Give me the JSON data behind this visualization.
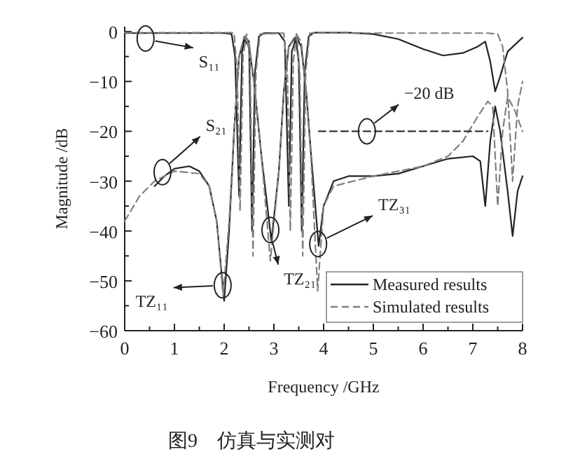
{
  "chart_data": {
    "type": "line",
    "xlabel": "Frequency /GHz",
    "ylabel": "Magnitude /dB",
    "xlim": [
      0,
      8
    ],
    "ylim": [
      -60,
      1
    ],
    "xticks": [
      0,
      1,
      2,
      3,
      4,
      5,
      6,
      7,
      8
    ],
    "yticks": [
      0,
      -10,
      -20,
      -30,
      -40,
      -50,
      -60
    ],
    "legend": "bottom right",
    "series": [
      {
        "name": "Measured results",
        "color": "#222222",
        "line_style": "solid",
        "x": [
          0,
          1,
          2,
          2.15,
          2.22,
          2.3,
          2.36,
          2.42,
          2.5,
          2.56,
          2.62,
          2.7,
          2.8,
          3.1,
          3.22,
          3.3,
          3.36,
          3.44,
          3.5,
          3.56,
          3.62,
          3.7,
          3.8,
          4.5,
          5,
          5.5,
          6,
          6.4,
          6.8,
          7.1,
          7.25,
          7.35,
          7.45,
          7.55,
          7.7,
          8
        ],
        "values": [
          -0.3,
          -0.3,
          -0.3,
          -0.5,
          -5,
          -33,
          -4,
          -1,
          -2,
          -40,
          -8,
          -1,
          -0.3,
          -0.3,
          -2,
          -35,
          -4,
          -1.5,
          -6,
          -40,
          -8,
          -1,
          -0.2,
          -0.2,
          -0.5,
          -1.5,
          -3.5,
          -4.8,
          -4.3,
          -3,
          -2,
          -6,
          -12,
          -9,
          -4,
          -1.2
        ]
      },
      {
        "color": "#222222",
        "line_style": "solid",
        "x": [
          0.6,
          0.8,
          1,
          1.3,
          1.5,
          1.7,
          1.85,
          2,
          2.1,
          2.2,
          2.3,
          2.4,
          2.5,
          2.6,
          2.75,
          2.95,
          3.1,
          3.2,
          3.3,
          3.45,
          3.55,
          3.65,
          3.75,
          3.9,
          4,
          4.2,
          4.5,
          5,
          5.5,
          6,
          6.5,
          7,
          7.15,
          7.25,
          7.35,
          7.45,
          7.55,
          7.7,
          7.8,
          7.9,
          8
        ],
        "values": [
          -31,
          -29,
          -27.5,
          -27,
          -28,
          -31,
          -38,
          -54,
          -40,
          -20,
          -5,
          -1.5,
          -3,
          -10,
          -25,
          -42,
          -28,
          -12,
          -3,
          -1,
          -3,
          -12,
          -25,
          -43,
          -35,
          -30,
          -29,
          -29,
          -28.5,
          -27,
          -25.5,
          -25,
          -26,
          -35,
          -22,
          -15,
          -20,
          -32,
          -41,
          -32,
          -29
        ]
      },
      {
        "name": "Simulated results",
        "color": "#808080",
        "line_style": "dashed",
        "x": [
          0,
          2.2,
          2.26,
          2.32,
          2.38,
          2.45,
          2.52,
          2.58,
          2.64,
          2.72,
          3.2,
          3.27,
          3.33,
          3.39,
          3.46,
          3.52,
          3.58,
          3.64,
          3.72,
          7.3,
          7.5,
          7.6,
          7.7,
          7.8,
          7.9,
          8
        ],
        "values": [
          -0.2,
          -0.2,
          -8,
          -36,
          -5,
          -0.5,
          -6,
          -45,
          -8,
          -0.5,
          -0.3,
          -8,
          -40,
          -6,
          -0.5,
          -8,
          -45,
          -8,
          -0.3,
          -0.3,
          -0.5,
          -3,
          -12,
          -30,
          -15,
          -10
        ]
      },
      {
        "color": "#808080",
        "line_style": "dashed",
        "x": [
          0,
          0.3,
          0.6,
          1,
          1.5,
          1.7,
          1.85,
          1.98,
          2.1,
          2.2,
          2.3,
          2.4,
          2.5,
          2.6,
          2.75,
          2.93,
          3.1,
          3.2,
          3.3,
          3.45,
          3.55,
          3.65,
          3.75,
          3.88,
          4,
          4.2,
          5,
          6,
          6.5,
          6.8,
          7.1,
          7.3,
          7.4,
          7.5,
          7.6,
          7.7,
          7.85,
          8
        ],
        "values": [
          -38,
          -33,
          -30,
          -28,
          -28.5,
          -31,
          -38,
          -53,
          -38,
          -20,
          -5,
          -1,
          -2,
          -10,
          -25,
          -46,
          -28,
          -12,
          -3,
          -0.5,
          -2,
          -12,
          -26,
          -52,
          -35,
          -31,
          -29,
          -27,
          -25,
          -22,
          -17,
          -14,
          -15,
          -35,
          -20,
          -13,
          -16,
          -20
        ]
      },
      {
        "color": "#333333",
        "line_style": "dashed",
        "x": [
          3.9,
          7.3
        ],
        "values": [
          -20,
          -20
        ]
      }
    ],
    "annotations": [
      {
        "text": "S₁₁",
        "x": 0.42,
        "y": -1.4
      },
      {
        "text": "S₂₁",
        "x": 0.76,
        "y": -28.2
      },
      {
        "text": "−20 dB",
        "x": 4.87,
        "y": -20
      },
      {
        "text": "TZ₁₁",
        "x": 1.97,
        "y": -50.9
      },
      {
        "text": "TZ₂₁",
        "x": 2.93,
        "y": -39.8
      },
      {
        "text": "TZ₃₁",
        "x": 3.89,
        "y": -42.6
      },
      "图9　仿真与实测对"
    ]
  }
}
